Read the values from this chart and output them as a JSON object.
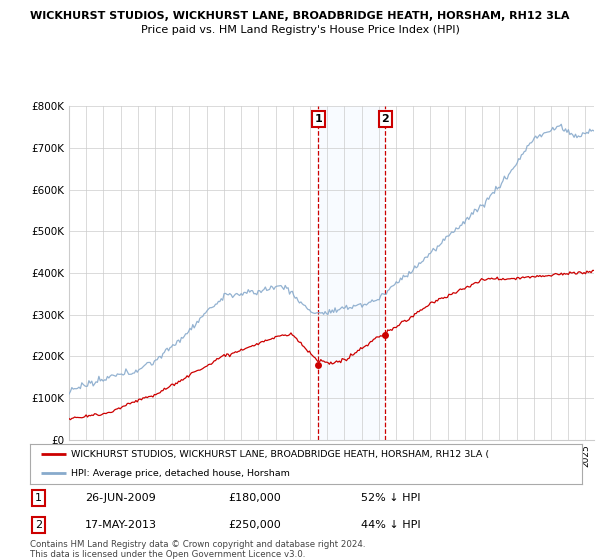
{
  "title1": "WICKHURST STUDIOS, WICKHURST LANE, BROADBRIDGE HEATH, HORSHAM, RH12 3LA",
  "title2": "Price paid vs. HM Land Registry's House Price Index (HPI)",
  "ylim": [
    0,
    800000
  ],
  "yticks": [
    0,
    100000,
    200000,
    300000,
    400000,
    500000,
    600000,
    700000,
    800000
  ],
  "legend_line1": "WICKHURST STUDIOS, WICKHURST LANE, BROADBRIDGE HEATH, HORSHAM, RH12 3LA (",
  "legend_line2": "HPI: Average price, detached house, Horsham",
  "legend_line1_color": "#cc0000",
  "legend_line2_color": "#88aacc",
  "transaction1_date": "26-JUN-2009",
  "transaction1_price": "£180,000",
  "transaction1_hpi": "52% ↓ HPI",
  "transaction1_x": 2009.49,
  "transaction1_y": 180000,
  "transaction2_date": "17-MAY-2013",
  "transaction2_price": "£250,000",
  "transaction2_hpi": "44% ↓ HPI",
  "transaction2_x": 2013.38,
  "transaction2_y": 250000,
  "footer": "Contains HM Land Registry data © Crown copyright and database right 2024.\nThis data is licensed under the Open Government Licence v3.0.",
  "bg_color": "#ffffff",
  "grid_color": "#cccccc",
  "shade_color": "#ddeeff",
  "vline_color": "#cc0000",
  "xmin": 1995,
  "xmax": 2025.5
}
